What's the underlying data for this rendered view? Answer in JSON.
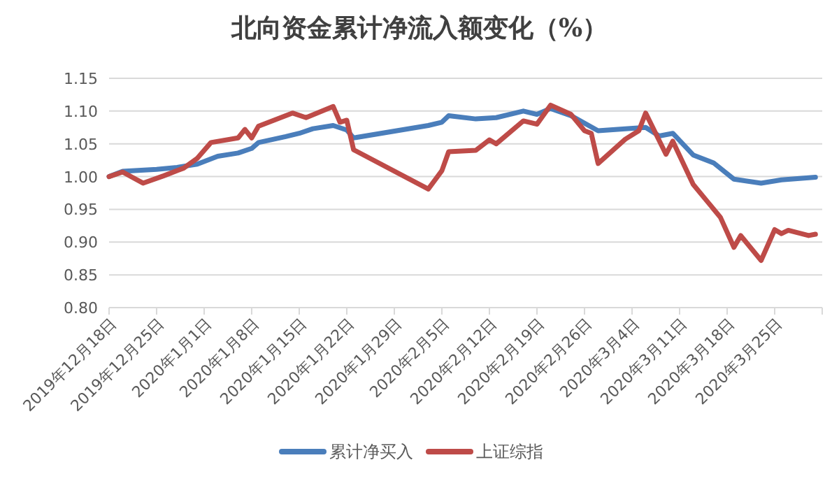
{
  "chart_data": {
    "type": "line",
    "title": "北向资金累计净流入额变化（%）",
    "xlim": [
      "2019-12-18",
      "2020-04-01"
    ],
    "xticks": [
      {
        "value": "2019-12-18",
        "label": "2019年12月18日"
      },
      {
        "value": "2019-12-25",
        "label": "2019年12月25日"
      },
      {
        "value": "2020-01-01",
        "label": "2020年1月1日"
      },
      {
        "value": "2020-01-08",
        "label": "2020年1月8日"
      },
      {
        "value": "2020-01-15",
        "label": "2020年1月15日"
      },
      {
        "value": "2020-01-22",
        "label": "2020年1月22日"
      },
      {
        "value": "2020-01-29",
        "label": "2020年1月29日"
      },
      {
        "value": "2020-02-05",
        "label": "2020年2月5日"
      },
      {
        "value": "2020-02-12",
        "label": "2020年2月12日"
      },
      {
        "value": "2020-02-19",
        "label": "2020年2月19日"
      },
      {
        "value": "2020-02-26",
        "label": "2020年2月26日"
      },
      {
        "value": "2020-03-04",
        "label": "2020年3月4日"
      },
      {
        "value": "2020-03-11",
        "label": "2020年3月11日"
      },
      {
        "value": "2020-03-18",
        "label": "2020年3月18日"
      },
      {
        "value": "2020-03-25",
        "label": "2020年3月25日"
      },
      {
        "value": "2020-04-01",
        "label": null
      }
    ],
    "ylim": [
      0.8,
      1.15
    ],
    "yticks": [
      {
        "value": 0.8,
        "label": "0.80"
      },
      {
        "value": 0.85,
        "label": "0.85"
      },
      {
        "value": 0.9,
        "label": "0.90"
      },
      {
        "value": 0.95,
        "label": "0.95"
      },
      {
        "value": 1.0,
        "label": "1.00"
      },
      {
        "value": 1.05,
        "label": "1.05"
      },
      {
        "value": 1.1,
        "label": "1.10"
      },
      {
        "value": 1.15,
        "label": "1.15"
      }
    ],
    "grid": "y",
    "legend": "bottom",
    "marker": "none",
    "line_style": "solid",
    "series": [
      {
        "name": "累计净买入",
        "color": "#4a7ebb",
        "x": [
          "2019-12-18",
          "2019-12-20",
          "2019-12-25",
          "2019-12-28",
          "2019-12-31",
          "2020-01-03",
          "2020-01-06",
          "2020-01-08",
          "2020-01-09",
          "2020-01-13",
          "2020-01-15",
          "2020-01-17",
          "2020-01-20",
          "2020-01-22",
          "2020-01-23",
          "2020-02-03",
          "2020-02-05",
          "2020-02-06",
          "2020-02-10",
          "2020-02-13",
          "2020-02-17",
          "2020-02-19",
          "2020-02-21",
          "2020-02-24",
          "2020-02-28",
          "2020-03-03",
          "2020-03-06",
          "2020-03-08",
          "2020-03-10",
          "2020-03-13",
          "2020-03-16",
          "2020-03-19",
          "2020-03-23",
          "2020-03-26",
          "2020-03-31"
        ],
        "values": [
          1.0,
          1.008,
          1.011,
          1.014,
          1.019,
          1.031,
          1.036,
          1.043,
          1.052,
          1.061,
          1.066,
          1.073,
          1.078,
          1.071,
          1.059,
          1.078,
          1.083,
          1.093,
          1.088,
          1.09,
          1.1,
          1.095,
          1.104,
          1.093,
          1.07,
          1.073,
          1.075,
          1.062,
          1.066,
          1.033,
          1.021,
          0.996,
          0.99,
          0.995,
          0.999
        ]
      },
      {
        "name": "上证综指",
        "color": "#be4b48",
        "x": [
          "2019-12-18",
          "2019-12-20",
          "2019-12-23",
          "2019-12-26",
          "2019-12-29",
          "2019-12-31",
          "2020-01-02",
          "2020-01-06",
          "2020-01-07",
          "2020-01-08",
          "2020-01-09",
          "2020-01-14",
          "2020-01-16",
          "2020-01-20",
          "2020-01-21",
          "2020-01-22",
          "2020-01-23",
          "2020-02-03",
          "2020-02-05",
          "2020-02-06",
          "2020-02-10",
          "2020-02-12",
          "2020-02-13",
          "2020-02-17",
          "2020-02-19",
          "2020-02-21",
          "2020-02-24",
          "2020-02-26",
          "2020-02-27",
          "2020-02-28",
          "2020-03-03",
          "2020-03-05",
          "2020-03-06",
          "2020-03-09",
          "2020-03-10",
          "2020-03-13",
          "2020-03-17",
          "2020-03-19",
          "2020-03-20",
          "2020-03-23",
          "2020-03-25",
          "2020-03-26",
          "2020-03-27",
          "2020-03-30",
          "2020-03-31"
        ],
        "values": [
          1.0,
          1.007,
          0.99,
          1.001,
          1.013,
          1.028,
          1.052,
          1.059,
          1.072,
          1.059,
          1.077,
          1.097,
          1.09,
          1.107,
          1.083,
          1.086,
          1.041,
          0.981,
          1.009,
          1.038,
          1.04,
          1.056,
          1.05,
          1.085,
          1.08,
          1.109,
          1.095,
          1.07,
          1.066,
          1.02,
          1.057,
          1.07,
          1.097,
          1.034,
          1.054,
          0.988,
          0.938,
          0.892,
          0.91,
          0.872,
          0.919,
          0.913,
          0.918,
          0.91,
          0.912
        ]
      }
    ]
  }
}
